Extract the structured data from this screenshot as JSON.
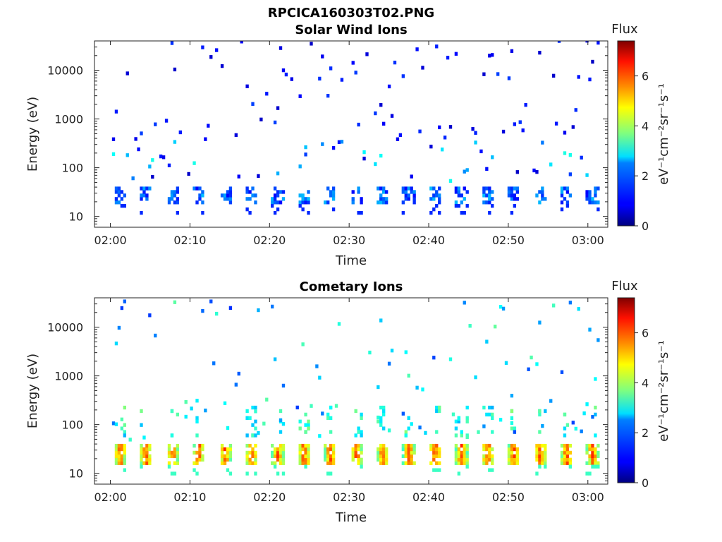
{
  "figure": {
    "title": "RPCICA160303T02.PNG"
  },
  "chart_data": [
    {
      "type": "heatmap",
      "title": "Solar Wind Ions",
      "xlabel": "Time",
      "ylabel": "Energy (eV)",
      "y_scale": "log",
      "ylim": [
        6,
        40000
      ],
      "x_ticks": [
        "02:00",
        "02:10",
        "02:20",
        "02:30",
        "02:40",
        "02:50",
        "03:00"
      ],
      "y_ticks": [
        "10",
        "100",
        "1000",
        "10000"
      ],
      "colorbar": {
        "title": "Flux",
        "label": "eV⁻¹cm⁻²sr⁻¹s⁻¹",
        "ticks": [
          "0",
          "2",
          "4",
          "6"
        ],
        "range": [
          0,
          7.4
        ],
        "colormap": "jet"
      },
      "pattern": {
        "main_band_energy_range_eV": [
          18,
          40
        ],
        "main_band_flux": 1.6,
        "cycle_minutes": 3.3,
        "sparse_flux": 1.0
      }
    },
    {
      "type": "heatmap",
      "title": "Cometary Ions",
      "xlabel": "Time",
      "ylabel": "Energy (eV)",
      "y_scale": "log",
      "ylim": [
        6,
        40000
      ],
      "x_ticks": [
        "02:00",
        "02:10",
        "02:20",
        "02:30",
        "02:40",
        "02:50",
        "03:00"
      ],
      "y_ticks": [
        "10",
        "100",
        "1000",
        "10000"
      ],
      "colorbar": {
        "title": "Flux",
        "label": "eV⁻¹cm⁻²sr⁻¹s⁻¹",
        "ticks": [
          "0",
          "2",
          "4",
          "6"
        ],
        "range": [
          0,
          7.4
        ],
        "colormap": "jet"
      },
      "pattern": {
        "main_band_energy_range_eV": [
          15,
          40
        ],
        "main_band_peak_flux": 5.8,
        "cycle_minutes": 3.3,
        "sparse_flux": 2.5
      }
    }
  ]
}
